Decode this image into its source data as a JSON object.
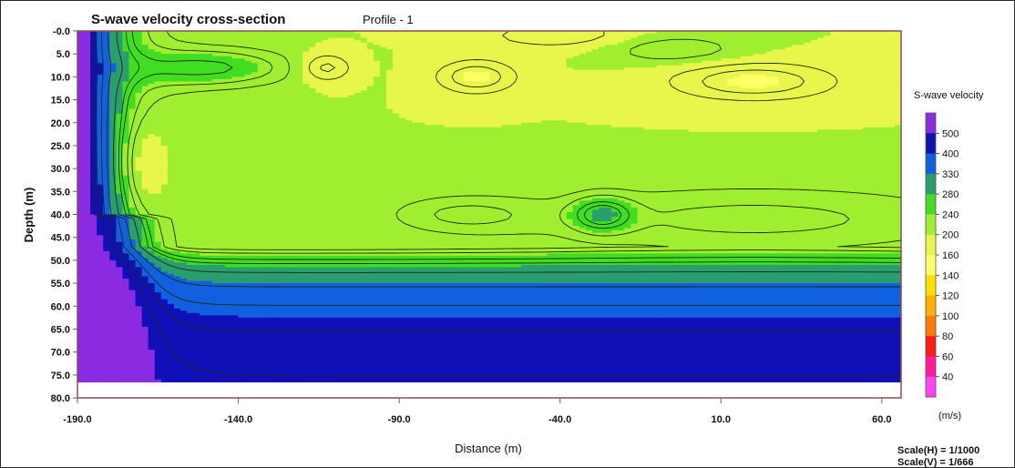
{
  "chart_data": {
    "type": "heatmap",
    "title": "S-wave velocity cross-section",
    "subtitle": "Profile - 1",
    "xlabel": "Distance (m)",
    "ylabel": "Depth (m)",
    "x_ticks": [
      "-190.0",
      "-140.0",
      "-90.0",
      "-40.0",
      "10.0",
      "60.0"
    ],
    "x_tick_values": [
      -190,
      -140,
      -90,
      -40,
      10,
      60
    ],
    "y_ticks": [
      "-0.0",
      "5.0",
      "10.0",
      "15.0",
      "20.0",
      "25.0",
      "30.0",
      "35.0",
      "40.0",
      "45.0",
      "50.0",
      "55.0",
      "60.0",
      "65.0",
      "70.0",
      "75.0",
      "80.0"
    ],
    "y_tick_values": [
      0,
      5,
      10,
      15,
      20,
      25,
      30,
      35,
      40,
      45,
      50,
      55,
      60,
      65,
      70,
      75,
      80
    ],
    "xlim": [
      -190,
      66
    ],
    "ylim": [
      0,
      80
    ],
    "data_depth_max": 76.5,
    "colorbar": {
      "title": "S-wave velocity",
      "unit": "(m/s)",
      "levels": [
        40,
        60,
        80,
        100,
        120,
        140,
        160,
        200,
        240,
        280,
        330,
        400,
        500
      ],
      "labels": [
        "40",
        "60",
        "80",
        "100",
        "120",
        "140",
        "160",
        "200",
        "240",
        "280",
        "330",
        "400",
        "500"
      ],
      "colors": [
        "#ff44ee",
        "#ff1a9a",
        "#ff1a1a",
        "#ff7a00",
        "#ffb000",
        "#ffe000",
        "#ffff66",
        "#e8f54a",
        "#a0ee30",
        "#40dd20",
        "#2a9e6e",
        "#1060e0",
        "#1010b8",
        "#8a2be2"
      ]
    },
    "scale_h": "Scale(H) = 1/1000",
    "scale_v": "Scale(V) = 1/666"
  }
}
